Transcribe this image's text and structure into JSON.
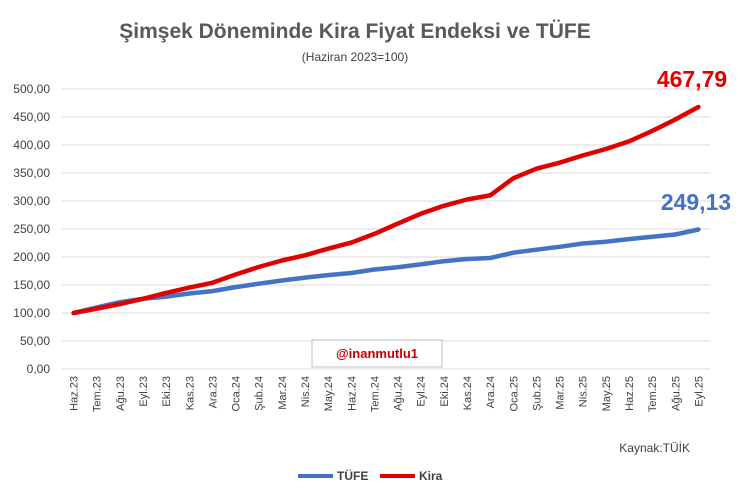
{
  "chart_data": {
    "type": "line",
    "title": "Şimşek Döneminde Kira Fiyat Endeksi ve TÜFE",
    "subtitle": "(Haziran 2023=100)",
    "categories": [
      "Haz.23",
      "Tem.23",
      "Ağu.23",
      "Eyl.23",
      "Eki.23",
      "Kas.23",
      "Ara.23",
      "Oca.24",
      "Şub.24",
      "Mar.24",
      "Nis.24",
      "May.24",
      "Haz.24",
      "Tem.24",
      "Ağu.24",
      "Eyl.24",
      "Eki.24",
      "Kas.24",
      "Ara.24",
      "Oca.25",
      "Şub.25",
      "Mar.25",
      "Nis.25",
      "May.25",
      "Haz.25",
      "Tem.25",
      "Ağu.25",
      "Eyl.25"
    ],
    "series": [
      {
        "name": "TÜFE",
        "color": "#4472C4",
        "values": [
          100,
          109.8,
          119.3,
          125.6,
          129.2,
          134.9,
          139.1,
          146.3,
          152.4,
          158.1,
          163.2,
          167.6,
          171.4,
          177.6,
          181.8,
          186.7,
          192.5,
          196.5,
          198.3,
          207.6,
          213.1,
          218.3,
          224.1,
          227.3,
          231.9,
          236.1,
          240.1,
          249.13
        ]
      },
      {
        "name": "Kira",
        "color": "#E00000",
        "values": [
          100,
          107.6,
          115.9,
          125.4,
          135.9,
          145.3,
          154.0,
          168.7,
          182.1,
          193.7,
          203.0,
          214.9,
          225.8,
          241.3,
          259.4,
          277.2,
          291.5,
          302.6,
          310.0,
          340.5,
          357.7,
          368.4,
          381.2,
          392.9,
          406.4,
          425.0,
          445.5,
          467.79
        ]
      }
    ],
    "ylim": [
      0,
      500
    ],
    "ytick_labels": [
      "0,00",
      "50,00",
      "100,00",
      "150,00",
      "200,00",
      "250,00",
      "300,00",
      "350,00",
      "400,00",
      "450,00",
      "500,00"
    ],
    "grid": true,
    "legend": "bottom",
    "end_labels": {
      "tufe": "249,13",
      "kira": "467,79"
    },
    "annotations": {
      "handle": "@inanmutlu1",
      "source": "Kaynak:TÜİK"
    }
  }
}
